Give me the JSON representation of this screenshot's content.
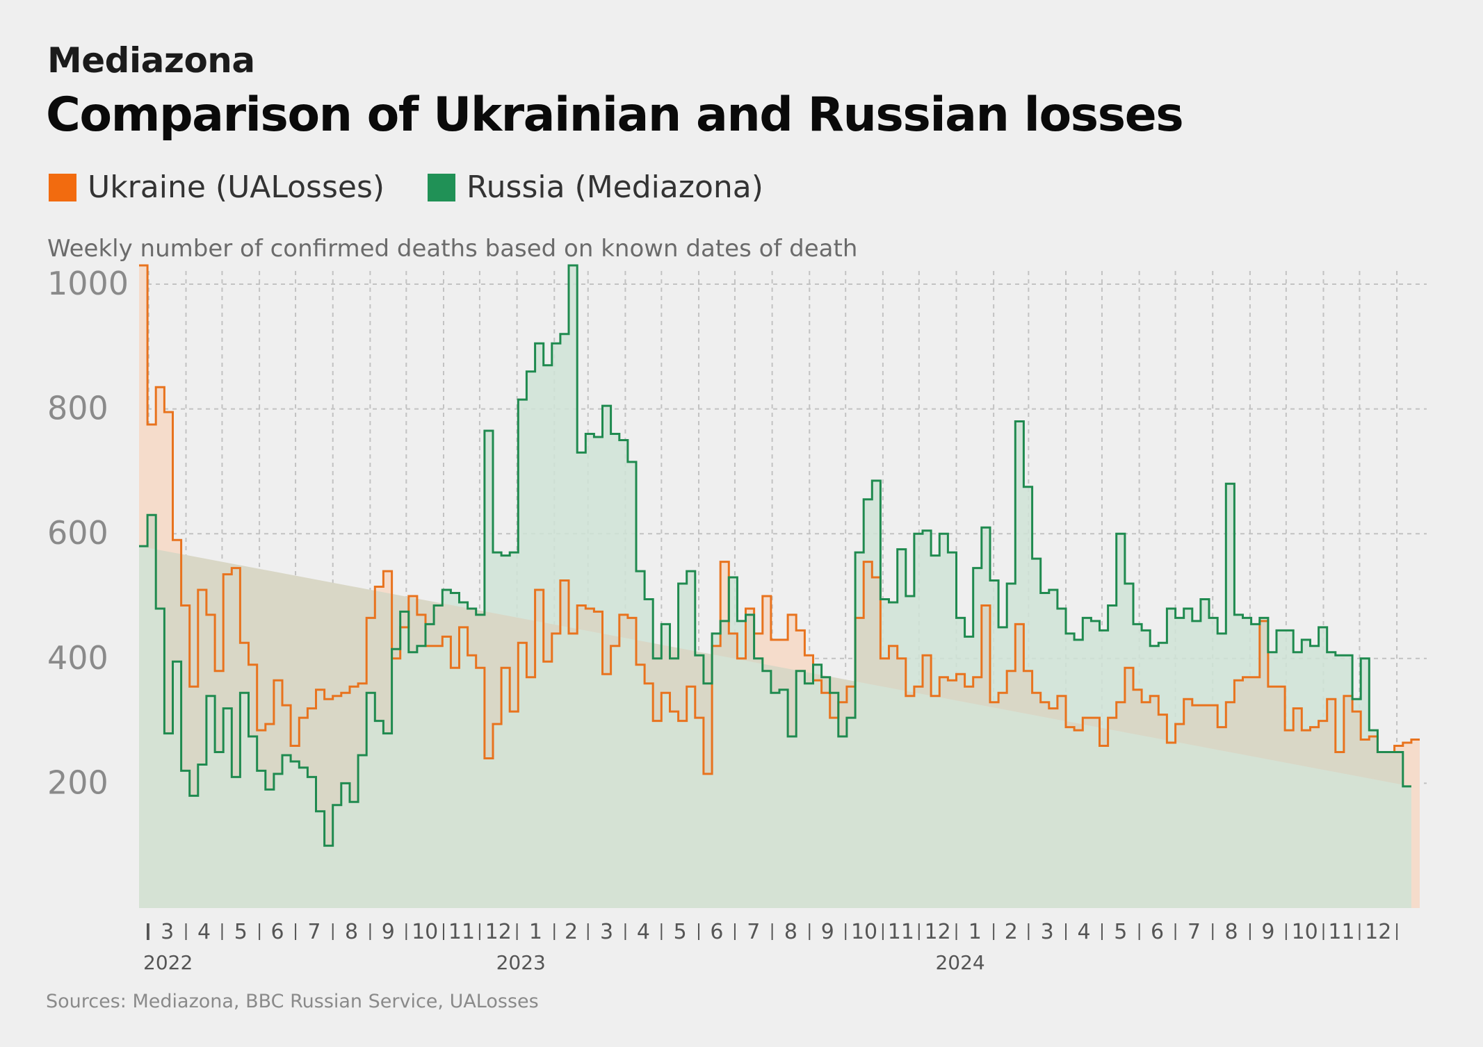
{
  "publisher": "Mediazona",
  "legend": {
    "items": [
      {
        "label": "Ukraine (UALosses)",
        "color": "#f26b0f"
      },
      {
        "label": "Russia (Mediazona)",
        "color": "#209156"
      }
    ]
  },
  "source_note": "Sources: Mediazona, BBC Russian Service, UALosses",
  "colors": {
    "ukraine_line": "#e8731e",
    "ukraine_fill": "#f5dccb",
    "russia_line": "#1f8a4f",
    "russia_fill": "#cfe3d6",
    "overlap_fill": "#d9d7c6",
    "grid": "#c2c2c2",
    "axis_text": "#8a8a8a",
    "month_text": "#555555"
  },
  "chart_data": {
    "type": "line",
    "title": "Comparison of Ukrainian and Russian losses",
    "subtitle": "Weekly number of confirmed deaths based on known dates of death",
    "xlabel": "",
    "ylabel": "",
    "x_start": "2022-02-21",
    "x_step_days": 7,
    "step": true,
    "ylim": [
      0,
      1010
    ],
    "yticks": [
      200,
      400,
      600,
      800,
      1000
    ],
    "grid": true,
    "legend_position": "top-left",
    "x_tick_labels": [
      "3",
      "4",
      "5",
      "6",
      "7",
      "8",
      "9",
      "10",
      "11",
      "12",
      "1",
      "2",
      "3",
      "4",
      "5",
      "6",
      "7",
      "8",
      "9",
      "10",
      "11",
      "12",
      "1",
      "2",
      "3",
      "4",
      "5",
      "6",
      "7",
      "8",
      "9",
      "10",
      "11",
      "12"
    ],
    "year_labels": [
      {
        "label": "2022",
        "date": "2022-02-21"
      },
      {
        "label": "2023",
        "date": "2023-01-01"
      },
      {
        "label": "2024",
        "date": "2024-01-01"
      }
    ],
    "series": [
      {
        "name": "Ukraine (UALosses)",
        "values": [
          1030,
          775,
          835,
          795,
          590,
          485,
          355,
          510,
          470,
          380,
          535,
          545,
          425,
          390,
          285,
          295,
          365,
          325,
          260,
          305,
          320,
          350,
          335,
          340,
          345,
          355,
          360,
          465,
          515,
          540,
          400,
          450,
          500,
          470,
          420,
          420,
          435,
          385,
          450,
          405,
          385,
          240,
          295,
          385,
          315,
          425,
          370,
          510,
          395,
          440,
          525,
          440,
          485,
          480,
          475,
          375,
          420,
          470,
          465,
          390,
          360,
          300,
          345,
          315,
          300,
          355,
          305,
          215,
          420,
          555,
          440,
          400,
          480,
          440,
          500,
          430,
          430,
          470,
          445,
          405,
          365,
          345,
          305,
          330,
          355,
          465,
          555,
          530,
          400,
          420,
          400,
          340,
          355,
          405,
          340,
          370,
          365,
          375,
          355,
          370,
          485,
          330,
          345,
          380,
          455,
          380,
          345,
          330,
          320,
          340,
          290,
          285,
          305,
          305,
          260,
          305,
          330,
          385,
          350,
          330,
          340,
          310,
          265,
          295,
          335,
          325,
          325,
          325,
          290,
          330,
          365,
          370,
          370,
          460,
          355,
          355,
          285,
          320,
          285,
          290,
          300,
          335,
          250,
          340,
          315,
          270,
          275,
          250,
          250,
          260,
          265,
          270
        ]
      },
      {
        "name": "Russia (Mediazona)",
        "values": [
          580,
          630,
          480,
          280,
          395,
          220,
          180,
          230,
          340,
          250,
          320,
          210,
          345,
          275,
          220,
          190,
          215,
          245,
          235,
          225,
          210,
          155,
          100,
          165,
          200,
          170,
          245,
          345,
          300,
          280,
          415,
          475,
          410,
          420,
          455,
          485,
          510,
          505,
          490,
          480,
          470,
          765,
          570,
          565,
          570,
          815,
          860,
          905,
          870,
          905,
          920,
          1030,
          730,
          760,
          755,
          805,
          760,
          750,
          715,
          540,
          495,
          400,
          455,
          400,
          520,
          540,
          405,
          360,
          440,
          460,
          530,
          460,
          470,
          400,
          380,
          345,
          350,
          275,
          380,
          360,
          390,
          370,
          345,
          275,
          305,
          570,
          655,
          685,
          495,
          490,
          575,
          500,
          600,
          605,
          565,
          600,
          570,
          465,
          435,
          545,
          610,
          525,
          450,
          520,
          780,
          675,
          560,
          505,
          510,
          480,
          440,
          430,
          465,
          460,
          445,
          485,
          600,
          520,
          455,
          445,
          420,
          425,
          480,
          465,
          480,
          460,
          495,
          465,
          440,
          680,
          470,
          465,
          455,
          465,
          410,
          445,
          445,
          410,
          430,
          420,
          450,
          410,
          405,
          405,
          335,
          400,
          285,
          250,
          250,
          250,
          195
        ]
      }
    ]
  }
}
